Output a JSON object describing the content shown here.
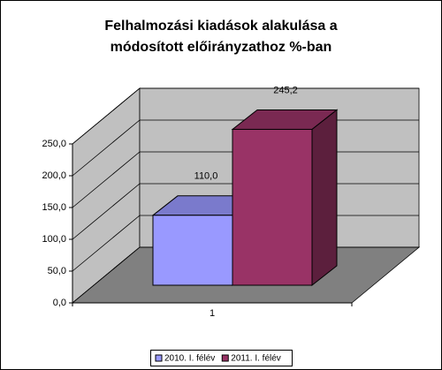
{
  "chart_data": {
    "type": "bar3d",
    "title": "Felhalmozási kiadások alakulása a módosított előirányzathoz %-ban",
    "categories": [
      "1"
    ],
    "series": [
      {
        "name": "2010. I. félév",
        "color": "#9999ff",
        "values": [
          110.0
        ],
        "value_labels": [
          "110,0"
        ]
      },
      {
        "name": "2011. I. félév",
        "color": "#993366",
        "values": [
          245.2
        ],
        "value_labels": [
          "245,2"
        ]
      }
    ],
    "ylim": [
      0,
      250
    ],
    "yticks": [
      {
        "value": 0,
        "label": "0,0"
      },
      {
        "value": 50,
        "label": "50,0"
      },
      {
        "value": 100,
        "label": "100,0"
      },
      {
        "value": 150,
        "label": "150,0"
      },
      {
        "value": 200,
        "label": "200,0"
      },
      {
        "value": 250,
        "label": "250,0"
      }
    ],
    "grid": true,
    "legend": "bottom"
  }
}
